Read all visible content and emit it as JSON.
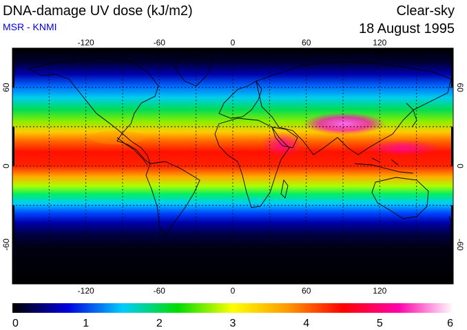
{
  "header": {
    "title": "DNA-damage UV dose (kJ/m2)",
    "subtitle": "MSR - KNMI",
    "mode": "Clear-sky",
    "date": "18 August 1995"
  },
  "map": {
    "lon_range": [
      -180,
      180
    ],
    "lat_range": [
      -90,
      90
    ],
    "lon_ticks": [
      "-120",
      "-60",
      "0",
      "60",
      "120"
    ],
    "lat_ticks": [
      "60",
      "0",
      "-60"
    ],
    "grid": "dashed, every 30 degrees"
  },
  "colorbar": {
    "min": 0,
    "max": 6,
    "labels": [
      "0",
      "1",
      "2",
      "3",
      "4",
      "5",
      "6"
    ],
    "stops": [
      "#000000",
      "#0000dd",
      "#00ccff",
      "#00dd00",
      "#ffff00",
      "#ff9900",
      "#ff0000",
      "#ff00aa",
      "#ffffff"
    ]
  },
  "colors": {
    "subtitle": "#0000dd"
  }
}
